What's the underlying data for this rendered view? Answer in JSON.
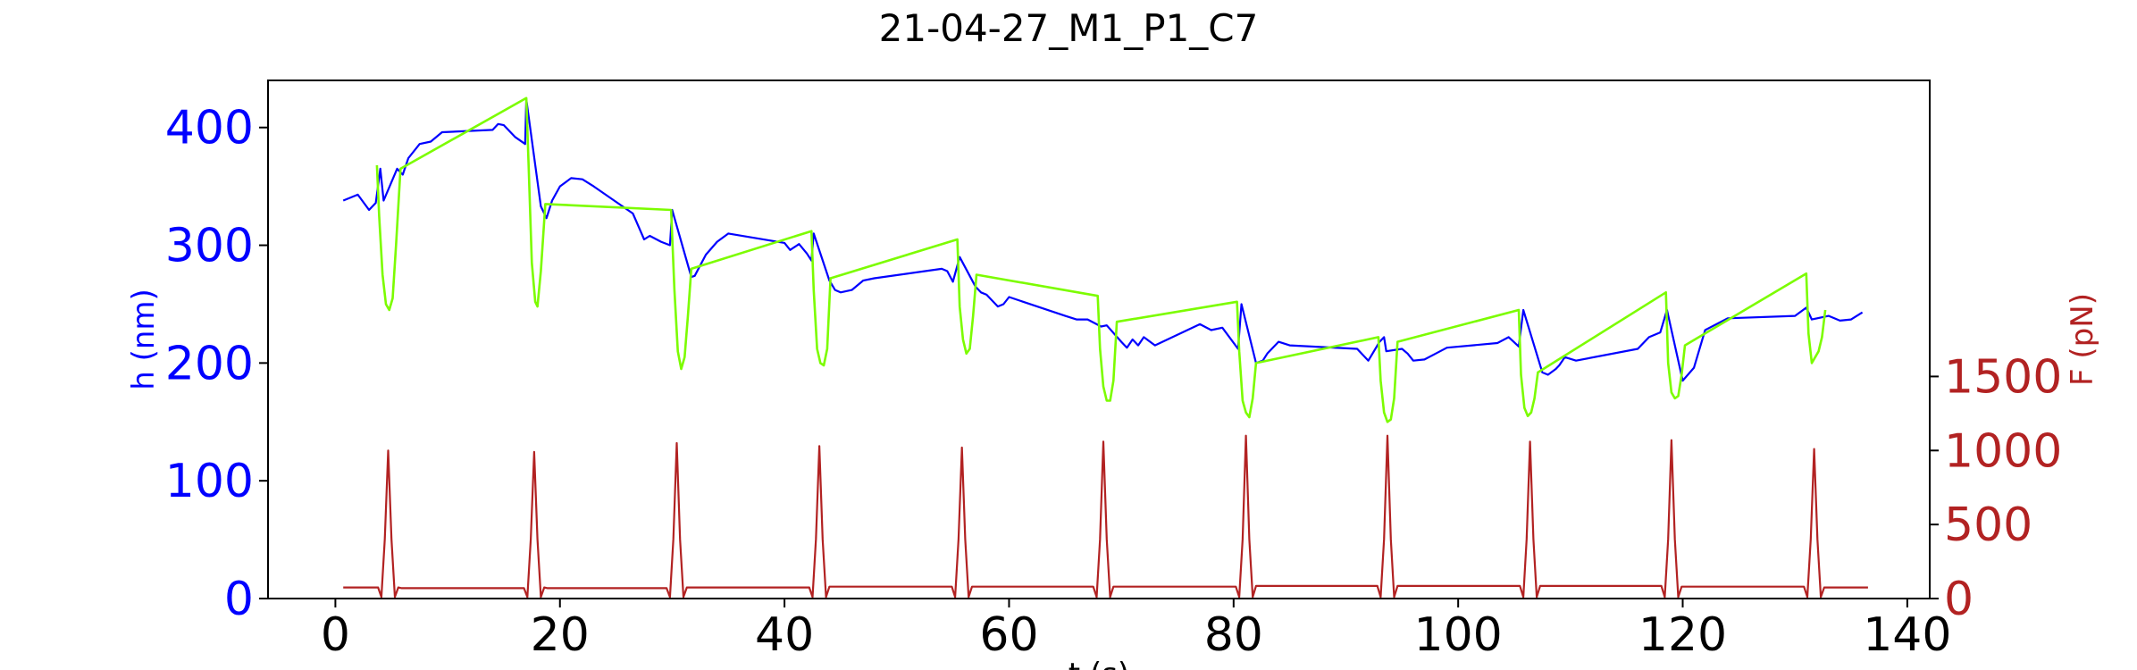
{
  "chart_data": {
    "type": "line",
    "title": "21-04-27_M1_P1_C7",
    "xlabel": "t (s)",
    "ylabel_left": "h (nm)",
    "ylabel_right": "F (pN)",
    "xlim": [
      -6,
      142
    ],
    "xticks": [
      "0",
      "20",
      "40",
      "60",
      "80",
      "100",
      "120",
      "140"
    ],
    "ylim_left": [
      0,
      440
    ],
    "yticks_left": [
      "0",
      "100",
      "200",
      "300",
      "400"
    ],
    "ylim_right": [
      0,
      3500
    ],
    "yticks_right": [
      "0",
      "500",
      "1000",
      "1500"
    ],
    "grid": false,
    "colors": {
      "h_baseline": "#0000ff",
      "h_compression": "#7cfc00",
      "force": "#b22222"
    },
    "series": [
      {
        "axis": "left",
        "color": "#0000ff",
        "x": [
          0.7,
          2.0,
          3.0,
          3.6,
          4.0,
          4.3,
          5.5,
          6.0,
          6.5,
          7.5,
          8.5,
          9.5,
          14.0,
          14.5,
          15.0,
          16.0,
          16.9,
          17.0,
          18.3,
          18.8,
          19.3,
          20.0,
          21.0,
          22.0,
          23.0,
          26.5,
          27.5,
          28.0,
          29.0,
          29.8,
          30.0,
          31.7,
          32.0,
          33.0,
          34.0,
          35.0,
          40.0,
          40.5,
          41.3,
          42.0,
          42.4,
          42.6,
          44.0,
          44.5,
          45.0,
          46.0,
          47.0,
          48.0,
          54.0,
          54.5,
          55.0,
          55.6,
          57.0,
          57.5,
          58.0,
          59.0,
          59.5,
          60.0,
          65.0,
          66.0,
          67.0,
          68.2,
          68.7,
          70.0,
          70.5,
          71.0,
          71.5,
          72.0,
          73.0,
          77.0,
          78.0,
          79.0,
          80.4,
          80.7,
          82.0,
          82.6,
          83.0,
          84.0,
          85.0,
          91.0,
          92.0,
          93.0,
          93.4,
          93.6,
          95.0,
          95.5,
          96.0,
          97.0,
          98.0,
          99.0,
          103.5,
          104.5,
          105.4,
          105.8,
          107.5,
          108.0,
          108.7,
          109.0,
          109.5,
          110.5,
          116.0,
          117.0,
          118.0,
          118.6,
          120.0,
          121.0,
          122.0,
          124.0,
          130.0,
          131.0,
          131.5,
          133.0,
          134.0,
          135.0,
          136.0
        ],
        "y": [
          338,
          343,
          330,
          336,
          365,
          338,
          365,
          360,
          374,
          386,
          388,
          396,
          398,
          403,
          402,
          392,
          386,
          424,
          333,
          323,
          338,
          350,
          357,
          356,
          350,
          327,
          305,
          308,
          303,
          300,
          330,
          273,
          274,
          292,
          303,
          310,
          302,
          296,
          301,
          293,
          287,
          310,
          270,
          262,
          260,
          262,
          270,
          272,
          280,
          278,
          269,
          290,
          265,
          260,
          258,
          248,
          250,
          256,
          240,
          237,
          237,
          231,
          232,
          218,
          213,
          220,
          215,
          222,
          215,
          233,
          228,
          230,
          212,
          250,
          200,
          202,
          208,
          218,
          215,
          212,
          202,
          218,
          222,
          210,
          212,
          208,
          202,
          203,
          208,
          213,
          217,
          222,
          214,
          245,
          192,
          190,
          195,
          198,
          205,
          202,
          212,
          222,
          226,
          245,
          185,
          196,
          228,
          238,
          240,
          247,
          237,
          240,
          236,
          237,
          243
        ]
      },
      {
        "axis": "left",
        "color": "#7cfc00",
        "x": [
          3.7,
          3.9,
          4.2,
          4.5,
          4.8,
          5.1,
          5.4,
          5.8,
          17.0,
          17.2,
          17.5,
          17.8,
          18.0,
          18.3,
          18.7,
          29.9,
          30.2,
          30.5,
          30.8,
          31.1,
          31.4,
          31.7,
          42.4,
          42.6,
          42.9,
          43.2,
          43.5,
          43.8,
          44.1,
          55.4,
          55.6,
          55.9,
          56.2,
          56.5,
          56.8,
          57.1,
          67.9,
          68.1,
          68.4,
          68.7,
          69.0,
          69.3,
          69.6,
          80.3,
          80.5,
          80.8,
          81.1,
          81.4,
          81.7,
          82.0,
          92.9,
          93.1,
          93.4,
          93.7,
          94.0,
          94.3,
          94.6,
          105.4,
          105.6,
          105.9,
          106.2,
          106.5,
          106.8,
          107.1,
          118.5,
          118.7,
          119.0,
          119.3,
          119.6,
          119.9,
          120.2,
          131.0,
          131.2,
          131.5,
          131.8,
          132.1,
          132.4,
          132.7
        ],
        "y": [
          368,
          325,
          275,
          250,
          245,
          255,
          300,
          365,
          425,
          370,
          285,
          252,
          248,
          278,
          335,
          330,
          262,
          210,
          195,
          205,
          240,
          280,
          312,
          262,
          212,
          200,
          198,
          212,
          272,
          305,
          248,
          220,
          208,
          212,
          240,
          275,
          257,
          212,
          180,
          168,
          168,
          185,
          235,
          252,
          210,
          168,
          158,
          154,
          170,
          200,
          222,
          185,
          158,
          150,
          152,
          170,
          218,
          245,
          190,
          162,
          155,
          158,
          170,
          192,
          260,
          200,
          175,
          170,
          172,
          190,
          215,
          276,
          225,
          200,
          205,
          210,
          222,
          245
        ]
      },
      {
        "axis": "right",
        "color": "#b22222",
        "x": [
          0.7,
          3.8,
          4.1,
          4.4,
          4.7,
          5.0,
          5.3,
          5.6,
          5.9,
          6.2,
          16.8,
          17.1,
          17.4,
          17.7,
          18.0,
          18.3,
          18.6,
          18.9,
          19.2,
          29.5,
          29.8,
          30.1,
          30.4,
          30.7,
          31.0,
          31.3,
          31.6,
          31.9,
          42.2,
          42.5,
          42.8,
          43.1,
          43.4,
          43.7,
          44.0,
          44.3,
          44.6,
          54.9,
          55.2,
          55.5,
          55.8,
          56.1,
          56.4,
          56.7,
          57.0,
          57.3,
          67.5,
          67.8,
          68.1,
          68.4,
          68.7,
          69.0,
          69.3,
          69.6,
          69.9,
          80.2,
          80.5,
          80.8,
          81.1,
          81.4,
          81.7,
          82.0,
          82.3,
          82.6,
          92.8,
          93.1,
          93.4,
          93.7,
          94.0,
          94.3,
          94.6,
          94.9,
          95.2,
          105.5,
          105.8,
          106.1,
          106.4,
          106.7,
          107.0,
          107.3,
          107.6,
          107.9,
          118.1,
          118.4,
          118.7,
          119.0,
          119.3,
          119.6,
          119.9,
          120.2,
          120.5,
          130.8,
          131.1,
          131.4,
          131.7,
          132.0,
          132.3,
          132.6,
          132.9,
          133.2,
          136.5
        ],
        "y": [
          75,
          75,
          10,
          400,
          1000,
          400,
          10,
          75,
          70,
          70,
          70,
          10,
          400,
          990,
          400,
          10,
          75,
          70,
          70,
          70,
          10,
          400,
          1050,
          400,
          10,
          75,
          75,
          75,
          75,
          10,
          400,
          1030,
          400,
          10,
          80,
          80,
          80,
          80,
          10,
          400,
          1020,
          400,
          10,
          80,
          80,
          80,
          80,
          10,
          400,
          1060,
          400,
          10,
          80,
          80,
          80,
          80,
          10,
          400,
          1100,
          400,
          10,
          85,
          85,
          85,
          85,
          10,
          400,
          1100,
          400,
          10,
          85,
          85,
          85,
          85,
          10,
          400,
          1060,
          400,
          10,
          85,
          85,
          85,
          85,
          10,
          400,
          1070,
          400,
          10,
          80,
          80,
          80,
          80,
          10,
          400,
          1010,
          400,
          10,
          75,
          75,
          75,
          75
        ]
      }
    ]
  }
}
